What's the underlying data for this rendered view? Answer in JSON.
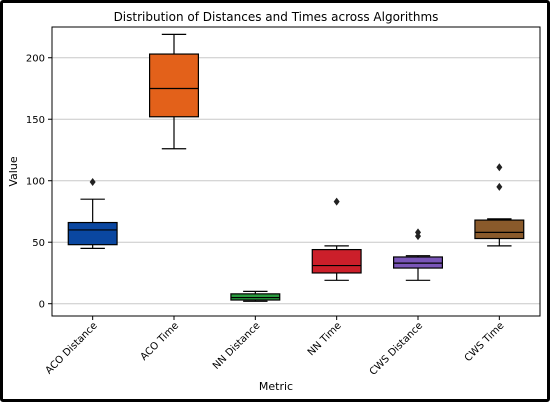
{
  "chart_data": {
    "type": "box",
    "title": "Distribution of Distances and Times across Algorithms",
    "xlabel": "Metric",
    "ylabel": "Value",
    "ylim": [
      -10,
      225
    ],
    "yticks": [
      0,
      50,
      100,
      150,
      200
    ],
    "grid": "horizontal",
    "categories": [
      "ACO Distance",
      "ACO Time",
      "NN Distance",
      "NN Time",
      "CWS Distance",
      "CWS Time"
    ],
    "boxes": [
      {
        "category": "ACO Distance",
        "color": "#0a47a1",
        "whisker_low": 45,
        "q1": 48,
        "median": 60,
        "q3": 66,
        "whisker_high": 85,
        "outliers": [
          99
        ]
      },
      {
        "category": "ACO Time",
        "color": "#e3611a",
        "whisker_low": 126,
        "q1": 152,
        "median": 175,
        "q3": 203,
        "whisker_high": 219,
        "outliers": []
      },
      {
        "category": "NN Distance",
        "color": "#2a9a3e",
        "whisker_low": 2,
        "q1": 3,
        "median": 5,
        "q3": 8,
        "whisker_high": 10,
        "outliers": []
      },
      {
        "category": "NN Time",
        "color": "#cc1f2a",
        "whisker_low": 19,
        "q1": 25,
        "median": 31,
        "q3": 44,
        "whisker_high": 47,
        "outliers": [
          83
        ]
      },
      {
        "category": "CWS Distance",
        "color": "#7a56b8",
        "whisker_low": 19,
        "q1": 29,
        "median": 33,
        "q3": 38,
        "whisker_high": 39,
        "outliers": [
          55,
          58
        ]
      },
      {
        "category": "CWS Time",
        "color": "#8a5a2b",
        "whisker_low": 47,
        "q1": 53,
        "median": 58,
        "q3": 68,
        "whisker_high": 69,
        "outliers": [
          95,
          111
        ]
      }
    ]
  }
}
